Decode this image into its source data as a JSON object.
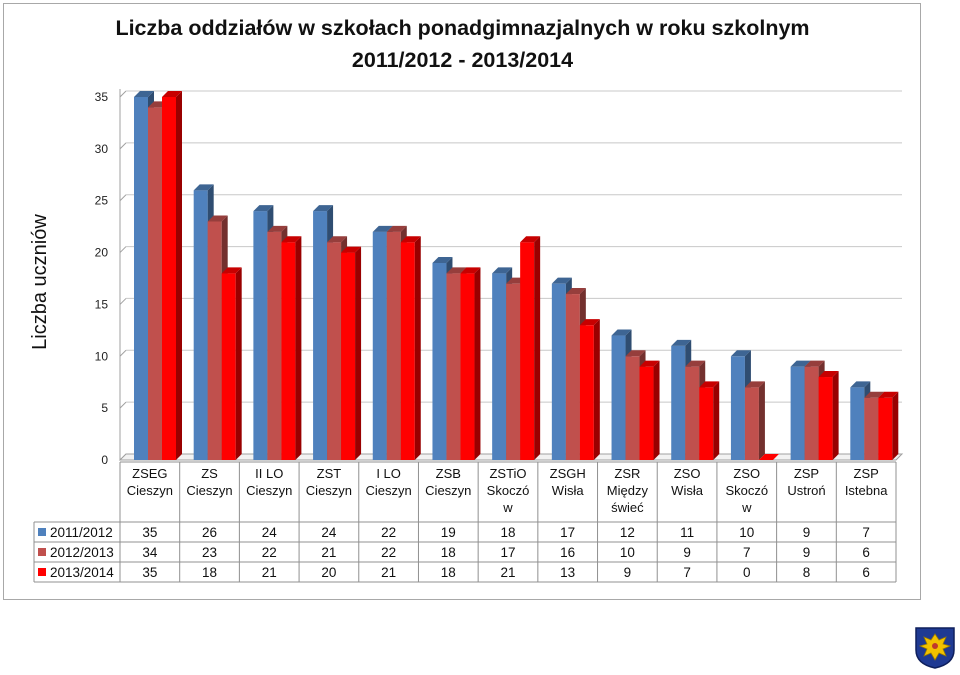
{
  "chart_data": {
    "type": "bar",
    "title_lines": [
      "Liczba oddziałów w szkołach ponadgimnazjalnych w roku szkolnym",
      "2011/2012 - 2013/2014"
    ],
    "ylabel": "Liczba uczniów",
    "xlabel": "",
    "ylim": [
      0,
      35
    ],
    "yticks": [
      0,
      5,
      10,
      15,
      20,
      25,
      30,
      35
    ],
    "categories": [
      [
        "ZSEG",
        "Cieszyn"
      ],
      [
        "ZS",
        "Cieszyn"
      ],
      [
        "II LO",
        "Cieszyn"
      ],
      [
        "ZST",
        "Cieszyn"
      ],
      [
        "I LO",
        "Cieszyn"
      ],
      [
        "ZSB",
        "Cieszyn"
      ],
      [
        "ZSTiO",
        "Skoczó",
        "w"
      ],
      [
        "ZSGH",
        "Wisła"
      ],
      [
        "ZSR",
        "Między",
        "świeć"
      ],
      [
        "ZSO",
        "Wisła"
      ],
      [
        "ZSO",
        "Skoczó",
        "w"
      ],
      [
        "ZSP",
        "Ustroń"
      ],
      [
        "ZSP",
        "Istebna"
      ]
    ],
    "series": [
      {
        "name": "2011/2012",
        "color": "#4f81bd",
        "values": [
          35,
          26,
          24,
          24,
          22,
          19,
          18,
          17,
          12,
          11,
          10,
          9,
          7
        ]
      },
      {
        "name": "2012/2013",
        "color": "#c0504d",
        "values": [
          34,
          23,
          22,
          21,
          22,
          18,
          17,
          16,
          10,
          9,
          7,
          9,
          6
        ]
      },
      {
        "name": "2013/2014",
        "color": "#ff0000",
        "values": [
          35,
          18,
          21,
          20,
          21,
          18,
          21,
          13,
          9,
          7,
          0,
          8,
          6
        ]
      }
    ],
    "grid": true,
    "legend": "data-table"
  },
  "emblem": {
    "name": "eagle-crest-icon",
    "colors": [
      "#1f3a93",
      "#f2c200"
    ]
  }
}
